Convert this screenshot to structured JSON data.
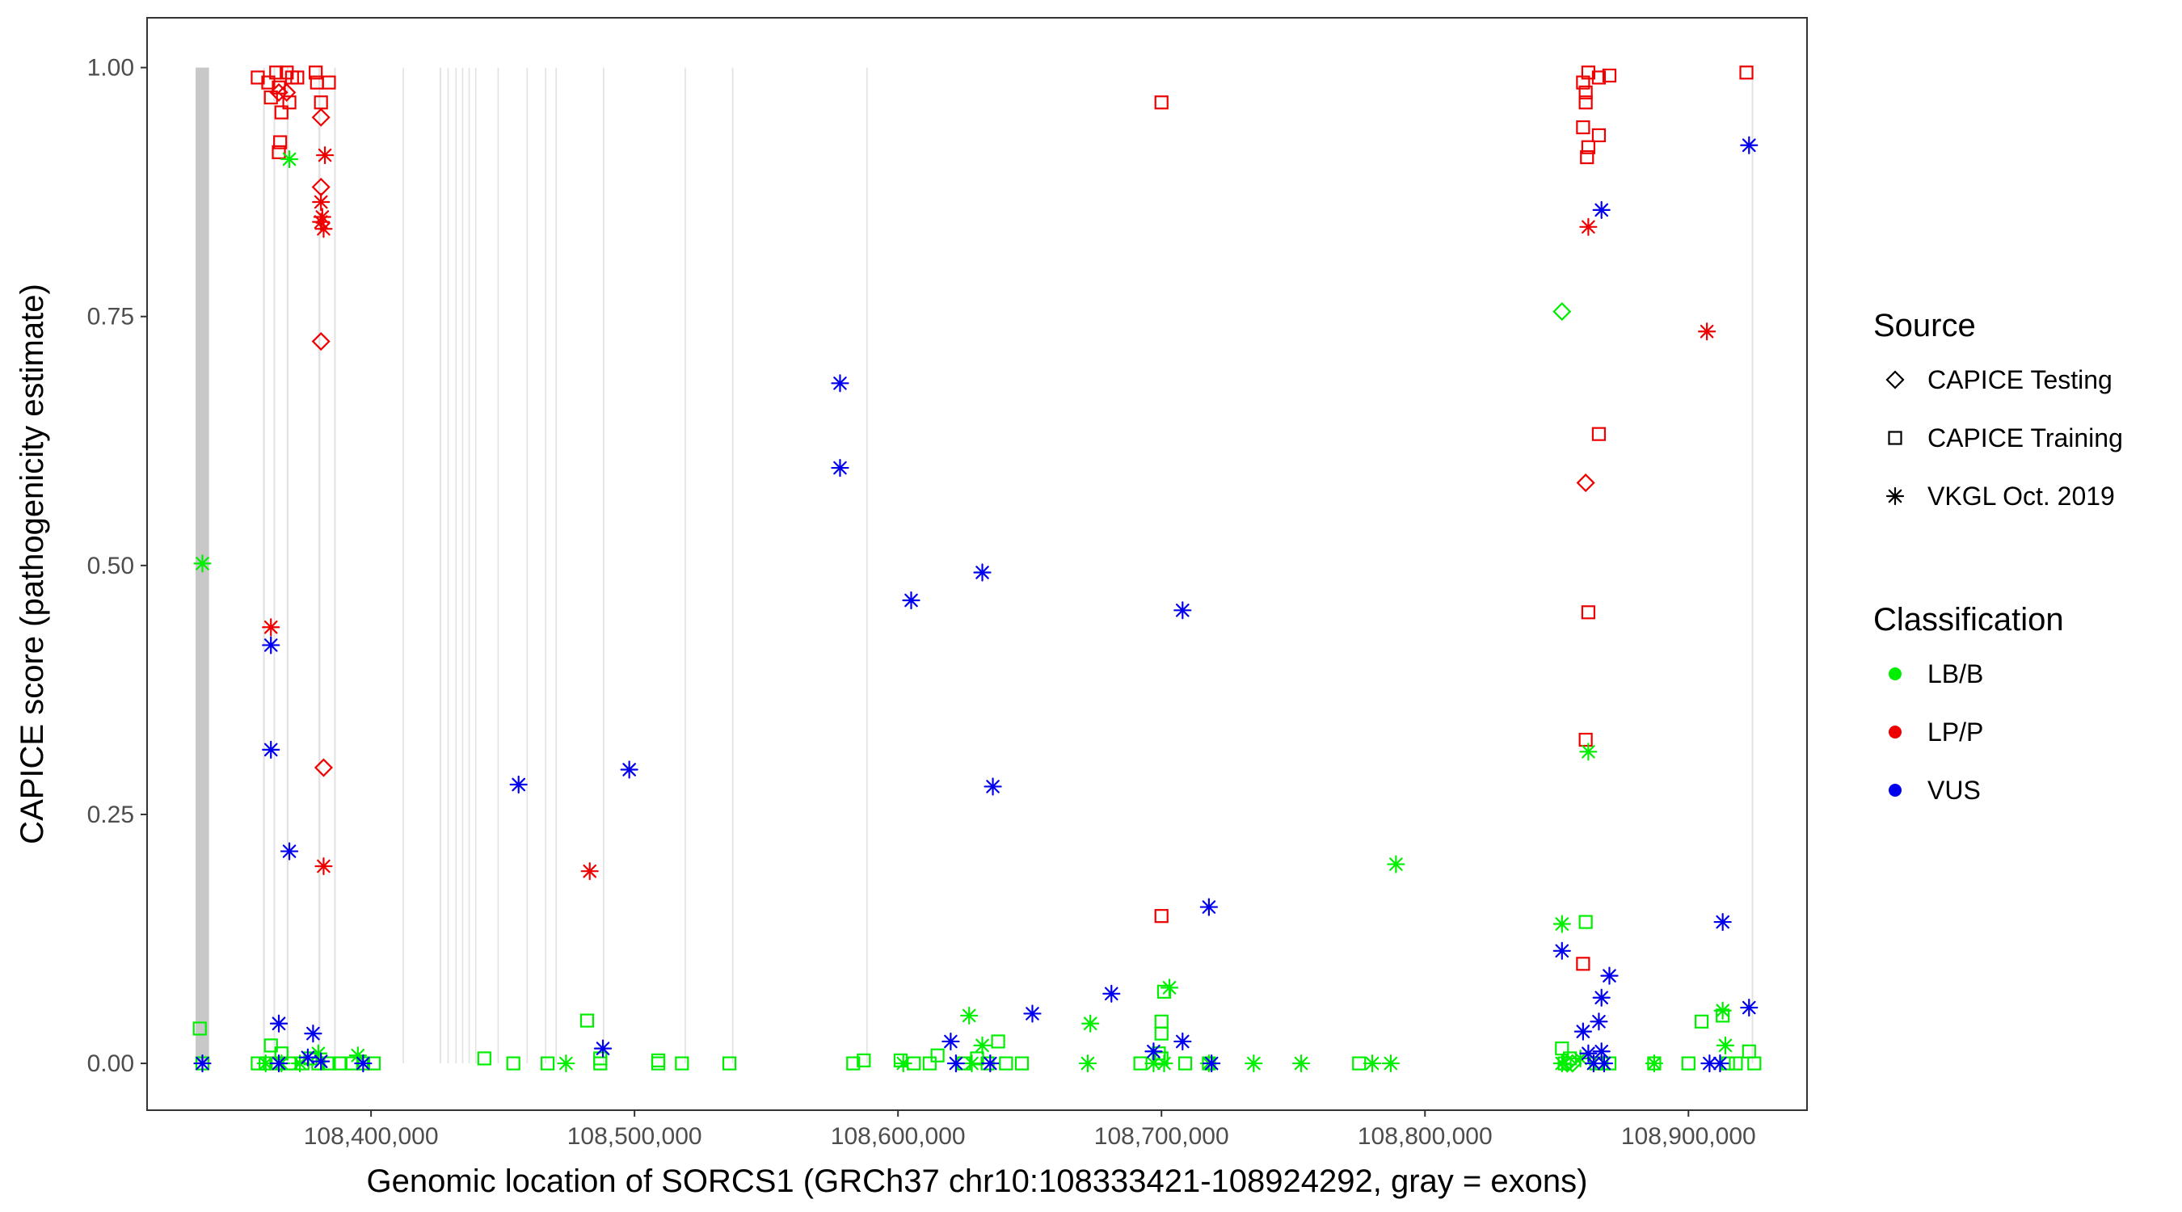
{
  "chart_data": {
    "type": "scatter",
    "title": "",
    "xlabel": "Genomic location of SORCS1 (GRCh37 chr10:108333421-108924292, gray = exons)",
    "ylabel": "CAPICE score (pathogenicity estimate)",
    "xlim": [
      108315000,
      108945000
    ],
    "ylim": [
      -0.047,
      1.05
    ],
    "x_ticks": [
      108400000,
      108500000,
      108600000,
      108700000,
      108800000,
      108900000
    ],
    "x_tick_labels": [
      "108,400,000",
      "108,500,000",
      "108,600,000",
      "108,700,000",
      "108,800,000",
      "108,900,000"
    ],
    "y_ticks": [
      0,
      0.25,
      0.5,
      0.75,
      1.0
    ],
    "y_tick_labels": [
      "0.00",
      "0.25",
      "0.50",
      "0.75",
      "1.00"
    ],
    "exon_bands": [
      [
        108333421,
        108338500
      ],
      [
        108359000,
        108359700
      ],
      [
        108363000,
        108363600
      ],
      [
        108368000,
        108368700
      ],
      [
        108380000,
        108380800
      ],
      [
        108386000,
        108386600
      ],
      [
        108412000,
        108412500
      ],
      [
        108426000,
        108426600
      ],
      [
        108429000,
        108429500
      ],
      [
        108432000,
        108432500
      ],
      [
        108434500,
        108435000
      ],
      [
        108437000,
        108437500
      ],
      [
        108439500,
        108440000
      ],
      [
        108448000,
        108448500
      ],
      [
        108459000,
        108459500
      ],
      [
        108466000,
        108466500
      ],
      [
        108470000,
        108470500
      ],
      [
        108488000,
        108488500
      ],
      [
        108519000,
        108519500
      ],
      [
        108537000,
        108537500
      ],
      [
        108588000,
        108588500
      ],
      [
        108924000,
        108924600
      ]
    ],
    "legend": {
      "source_title": "Source",
      "source_items": [
        {
          "label": "CAPICE Testing",
          "shape": "diamond"
        },
        {
          "label": "CAPICE Training",
          "shape": "square"
        },
        {
          "label": "VKGL Oct. 2019",
          "shape": "asterisk"
        }
      ],
      "class_title": "Classification",
      "class_items": [
        {
          "label": "LB/B",
          "color": "#00ee00"
        },
        {
          "label": "LP/P",
          "color": "#ee0000"
        },
        {
          "label": "VUS",
          "color": "#0000ee"
        }
      ]
    },
    "series": [
      {
        "name": "LP/P",
        "color": "#ee0000",
        "points": [
          [
            108357000,
            0.99,
            "square"
          ],
          [
            108361000,
            0.985,
            "square"
          ],
          [
            108362000,
            0.97,
            "square"
          ],
          [
            108364000,
            0.995,
            "square"
          ],
          [
            108365000,
            0.98,
            "square"
          ],
          [
            108366000,
            0.955,
            "square"
          ],
          [
            108365500,
            0.925,
            "square"
          ],
          [
            108365000,
            0.915,
            "square"
          ],
          [
            108368000,
            0.995,
            "square"
          ],
          [
            108369000,
            0.965,
            "square"
          ],
          [
            108370000,
            0.99,
            "square"
          ],
          [
            108372000,
            0.99,
            "square"
          ],
          [
            108379000,
            0.995,
            "square"
          ],
          [
            108379500,
            0.985,
            "square"
          ],
          [
            108381000,
            0.965,
            "square"
          ],
          [
            108384000,
            0.985,
            "square"
          ],
          [
            108365000,
            0.975,
            "diamond"
          ],
          [
            108368000,
            0.975,
            "diamond"
          ],
          [
            108381000,
            0.95,
            "diamond"
          ],
          [
            108381000,
            0.88,
            "diamond"
          ],
          [
            108381000,
            0.725,
            "diamond"
          ],
          [
            108382000,
            0.297,
            "diamond"
          ],
          [
            108382500,
            0.912,
            "asterisk"
          ],
          [
            108381000,
            0.865,
            "asterisk"
          ],
          [
            108381500,
            0.85,
            "asterisk"
          ],
          [
            108381000,
            0.845,
            "asterisk"
          ],
          [
            108382000,
            0.838,
            "asterisk"
          ],
          [
            108362000,
            0.438,
            "asterisk"
          ],
          [
            108382000,
            0.198,
            "asterisk"
          ],
          [
            108483000,
            0.193,
            "asterisk"
          ],
          [
            108700000,
            0.965,
            "square"
          ],
          [
            108700000,
            0.148,
            "square"
          ],
          [
            108860000,
            0.985,
            "square"
          ],
          [
            108861000,
            0.975,
            "square"
          ],
          [
            108862000,
            0.995,
            "square"
          ],
          [
            108861000,
            0.965,
            "square"
          ],
          [
            108860000,
            0.94,
            "square"
          ],
          [
            108862000,
            0.92,
            "square"
          ],
          [
            108861500,
            0.91,
            "square"
          ],
          [
            108866000,
            0.99,
            "square"
          ],
          [
            108866000,
            0.932,
            "square"
          ],
          [
            108870000,
            0.992,
            "square"
          ],
          [
            108866000,
            0.632,
            "square"
          ],
          [
            108862000,
            0.453,
            "square"
          ],
          [
            108861000,
            0.325,
            "square"
          ],
          [
            108860000,
            0.1,
            "square"
          ],
          [
            108922000,
            0.995,
            "square"
          ],
          [
            108861000,
            0.583,
            "diamond"
          ],
          [
            108862000,
            0.84,
            "asterisk"
          ],
          [
            108907000,
            0.735,
            "asterisk"
          ]
        ]
      },
      {
        "name": "LB/B",
        "color": "#00ee00",
        "points": [
          [
            108336000,
            0.502,
            "asterisk"
          ],
          [
            108369000,
            0.908,
            "asterisk"
          ],
          [
            108335000,
            0.035,
            "square"
          ],
          [
            108336000,
            0.0,
            "square"
          ],
          [
            108357000,
            0.0,
            "square"
          ],
          [
            108360000,
            0.0,
            "square"
          ],
          [
            108362000,
            0.018,
            "square"
          ],
          [
            108364000,
            0.0,
            "square"
          ],
          [
            108366000,
            0.01,
            "square"
          ],
          [
            108369000,
            0.0,
            "square"
          ],
          [
            108374000,
            0.0,
            "square"
          ],
          [
            108377000,
            0.005,
            "square"
          ],
          [
            108380000,
            0.0,
            "square"
          ],
          [
            108384000,
            0.0,
            "square"
          ],
          [
            108388000,
            0.0,
            "square"
          ],
          [
            108393000,
            0.0,
            "square"
          ],
          [
            108397000,
            0.0,
            "square"
          ],
          [
            108401000,
            0.0,
            "square"
          ],
          [
            108360000,
            0.0,
            "asterisk"
          ],
          [
            108366000,
            0.0,
            "asterisk"
          ],
          [
            108373000,
            0.0,
            "asterisk"
          ],
          [
            108380000,
            0.01,
            "asterisk"
          ],
          [
            108395000,
            0.008,
            "asterisk"
          ],
          [
            108443000,
            0.005,
            "square"
          ],
          [
            108454000,
            0.0,
            "square"
          ],
          [
            108467000,
            0.0,
            "square"
          ],
          [
            108482000,
            0.043,
            "square"
          ],
          [
            108487000,
            0.0,
            "square"
          ],
          [
            108487000,
            0.005,
            "square"
          ],
          [
            108509000,
            0.003,
            "square"
          ],
          [
            108509000,
            0.0,
            "square"
          ],
          [
            108518000,
            0.0,
            "square"
          ],
          [
            108536000,
            0.0,
            "square"
          ],
          [
            108583000,
            0.0,
            "square"
          ],
          [
            108587000,
            0.003,
            "square"
          ],
          [
            108474000,
            0.0,
            "asterisk"
          ],
          [
            108601000,
            0.003,
            "square"
          ],
          [
            108606000,
            0.0,
            "square"
          ],
          [
            108612000,
            0.0,
            "square"
          ],
          [
            108615000,
            0.008,
            "square"
          ],
          [
            108625000,
            0.0,
            "square"
          ],
          [
            108630000,
            0.005,
            "square"
          ],
          [
            108634000,
            0.0,
            "square"
          ],
          [
            108638000,
            0.022,
            "square"
          ],
          [
            108641000,
            0.0,
            "square"
          ],
          [
            108647000,
            0.0,
            "square"
          ],
          [
            108692000,
            0.0,
            "square"
          ],
          [
            108699000,
            0.01,
            "square"
          ],
          [
            108700000,
            0.042,
            "square"
          ],
          [
            108700000,
            0.03,
            "square"
          ],
          [
            108701000,
            0.072,
            "square"
          ],
          [
            108700000,
            0.005,
            "square"
          ],
          [
            108709000,
            0.0,
            "square"
          ],
          [
            108718000,
            0.0,
            "square"
          ],
          [
            108775000,
            0.0,
            "square"
          ],
          [
            108602000,
            0.0,
            "asterisk"
          ],
          [
            108627000,
            0.048,
            "asterisk"
          ],
          [
            108632000,
            0.018,
            "asterisk"
          ],
          [
            108628000,
            0.0,
            "asterisk"
          ],
          [
            108672000,
            0.0,
            "asterisk"
          ],
          [
            108673000,
            0.04,
            "asterisk"
          ],
          [
            108697000,
            0.0,
            "asterisk"
          ],
          [
            108703000,
            0.076,
            "asterisk"
          ],
          [
            108701000,
            0.0,
            "asterisk"
          ],
          [
            108718000,
            0.0,
            "asterisk"
          ],
          [
            108735000,
            0.0,
            "asterisk"
          ],
          [
            108753000,
            0.0,
            "asterisk"
          ],
          [
            108780000,
            0.0,
            "asterisk"
          ],
          [
            108787000,
            0.0,
            "asterisk"
          ],
          [
            108789000,
            0.2,
            "asterisk"
          ],
          [
            108852000,
            0.755,
            "diamond"
          ],
          [
            108854000,
            0.0,
            "diamond"
          ],
          [
            108856000,
            0.0,
            "diamond"
          ],
          [
            108852000,
            0.015,
            "square"
          ],
          [
            108853000,
            0.0,
            "square"
          ],
          [
            108855000,
            0.005,
            "square"
          ],
          [
            108861000,
            0.142,
            "square"
          ],
          [
            108865000,
            0.0,
            "square"
          ],
          [
            108867000,
            0.0,
            "square"
          ],
          [
            108870000,
            0.0,
            "square"
          ],
          [
            108887000,
            0.0,
            "square"
          ],
          [
            108900000,
            0.0,
            "square"
          ],
          [
            108905000,
            0.042,
            "square"
          ],
          [
            108913000,
            0.048,
            "square"
          ],
          [
            108915000,
            0.0,
            "square"
          ],
          [
            108918000,
            0.0,
            "square"
          ],
          [
            108923000,
            0.012,
            "square"
          ],
          [
            108925000,
            0.0,
            "square"
          ],
          [
            108852000,
            0.14,
            "asterisk"
          ],
          [
            108862000,
            0.313,
            "asterisk"
          ],
          [
            108852000,
            0.0,
            "asterisk"
          ],
          [
            108859000,
            0.005,
            "asterisk"
          ],
          [
            108887000,
            0.0,
            "asterisk"
          ],
          [
            108913000,
            0.053,
            "asterisk"
          ],
          [
            108914000,
            0.018,
            "asterisk"
          ]
        ]
      },
      {
        "name": "VUS",
        "color": "#0000ee",
        "points": [
          [
            108336000,
            0.0,
            "asterisk"
          ],
          [
            108362000,
            0.42,
            "asterisk"
          ],
          [
            108362000,
            0.315,
            "asterisk"
          ],
          [
            108369000,
            0.213,
            "asterisk"
          ],
          [
            108365000,
            0.04,
            "asterisk"
          ],
          [
            108365000,
            0.0,
            "asterisk"
          ],
          [
            108376000,
            0.006,
            "asterisk"
          ],
          [
            108378000,
            0.03,
            "asterisk"
          ],
          [
            108381000,
            0.002,
            "asterisk"
          ],
          [
            108397000,
            0.0,
            "asterisk"
          ],
          [
            108456000,
            0.28,
            "asterisk"
          ],
          [
            108488000,
            0.015,
            "asterisk"
          ],
          [
            108498000,
            0.295,
            "asterisk"
          ],
          [
            108578000,
            0.683,
            "asterisk"
          ],
          [
            108578000,
            0.598,
            "asterisk"
          ],
          [
            108605000,
            0.465,
            "asterisk"
          ],
          [
            108620000,
            0.022,
            "asterisk"
          ],
          [
            108622000,
            0.0,
            "asterisk"
          ],
          [
            108632000,
            0.493,
            "asterisk"
          ],
          [
            108636000,
            0.278,
            "asterisk"
          ],
          [
            108635000,
            0.0,
            "asterisk"
          ],
          [
            108651000,
            0.05,
            "asterisk"
          ],
          [
            108681000,
            0.07,
            "asterisk"
          ],
          [
            108697000,
            0.012,
            "asterisk"
          ],
          [
            108708000,
            0.455,
            "asterisk"
          ],
          [
            108708000,
            0.022,
            "asterisk"
          ],
          [
            108718000,
            0.157,
            "asterisk"
          ],
          [
            108719000,
            0.0,
            "asterisk"
          ],
          [
            108852000,
            0.113,
            "asterisk"
          ],
          [
            108860000,
            0.032,
            "asterisk"
          ],
          [
            108862000,
            0.01,
            "asterisk"
          ],
          [
            108864000,
            0.0,
            "asterisk"
          ],
          [
            108866000,
            0.042,
            "asterisk"
          ],
          [
            108867000,
            0.012,
            "asterisk"
          ],
          [
            108867000,
            0.066,
            "asterisk"
          ],
          [
            108867000,
            0.857,
            "asterisk"
          ],
          [
            108870000,
            0.088,
            "asterisk"
          ],
          [
            108868000,
            0.0,
            "asterisk"
          ],
          [
            108908000,
            0.0,
            "asterisk"
          ],
          [
            108912000,
            0.0,
            "asterisk"
          ],
          [
            108913000,
            0.142,
            "asterisk"
          ],
          [
            108923000,
            0.922,
            "asterisk"
          ],
          [
            108923000,
            0.056,
            "asterisk"
          ]
        ]
      }
    ]
  }
}
